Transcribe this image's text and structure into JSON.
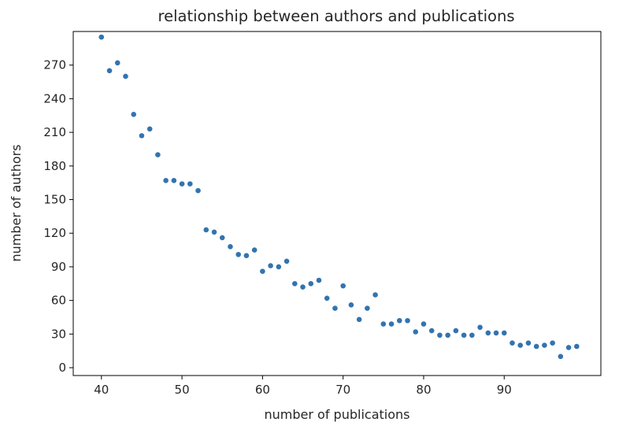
{
  "chart_data": {
    "type": "scatter",
    "title": "relationship between authors and publications",
    "xlabel": "number of publications",
    "ylabel": "number of authors",
    "xlim": [
      36.5,
      102
    ],
    "ylim": [
      -7,
      300
    ],
    "xticks": [
      40,
      50,
      60,
      70,
      80,
      90
    ],
    "yticks": [
      0,
      30,
      60,
      90,
      120,
      150,
      180,
      210,
      240,
      270
    ],
    "grid": false,
    "marker_color": "#3274b0",
    "points": [
      {
        "x": 40,
        "y": 295
      },
      {
        "x": 41,
        "y": 265
      },
      {
        "x": 42,
        "y": 272
      },
      {
        "x": 43,
        "y": 260
      },
      {
        "x": 44,
        "y": 226
      },
      {
        "x": 45,
        "y": 207
      },
      {
        "x": 46,
        "y": 213
      },
      {
        "x": 47,
        "y": 190
      },
      {
        "x": 48,
        "y": 167
      },
      {
        "x": 49,
        "y": 167
      },
      {
        "x": 50,
        "y": 164
      },
      {
        "x": 51,
        "y": 164
      },
      {
        "x": 52,
        "y": 158
      },
      {
        "x": 53,
        "y": 123
      },
      {
        "x": 54,
        "y": 121
      },
      {
        "x": 55,
        "y": 116
      },
      {
        "x": 56,
        "y": 108
      },
      {
        "x": 57,
        "y": 101
      },
      {
        "x": 58,
        "y": 100
      },
      {
        "x": 59,
        "y": 105
      },
      {
        "x": 60,
        "y": 86
      },
      {
        "x": 61,
        "y": 91
      },
      {
        "x": 62,
        "y": 90
      },
      {
        "x": 63,
        "y": 95
      },
      {
        "x": 64,
        "y": 75
      },
      {
        "x": 65,
        "y": 72
      },
      {
        "x": 66,
        "y": 75
      },
      {
        "x": 67,
        "y": 78
      },
      {
        "x": 68,
        "y": 62
      },
      {
        "x": 69,
        "y": 53
      },
      {
        "x": 70,
        "y": 73
      },
      {
        "x": 71,
        "y": 56
      },
      {
        "x": 72,
        "y": 43
      },
      {
        "x": 73,
        "y": 53
      },
      {
        "x": 74,
        "y": 65
      },
      {
        "x": 75,
        "y": 39
      },
      {
        "x": 76,
        "y": 39
      },
      {
        "x": 77,
        "y": 42
      },
      {
        "x": 78,
        "y": 42
      },
      {
        "x": 79,
        "y": 32
      },
      {
        "x": 80,
        "y": 39
      },
      {
        "x": 81,
        "y": 33
      },
      {
        "x": 82,
        "y": 29
      },
      {
        "x": 83,
        "y": 29
      },
      {
        "x": 84,
        "y": 33
      },
      {
        "x": 85,
        "y": 29
      },
      {
        "x": 86,
        "y": 29
      },
      {
        "x": 87,
        "y": 36
      },
      {
        "x": 88,
        "y": 31
      },
      {
        "x": 89,
        "y": 31
      },
      {
        "x": 90,
        "y": 31
      },
      {
        "x": 91,
        "y": 22
      },
      {
        "x": 92,
        "y": 20
      },
      {
        "x": 93,
        "y": 22
      },
      {
        "x": 94,
        "y": 19
      },
      {
        "x": 95,
        "y": 20
      },
      {
        "x": 96,
        "y": 22
      },
      {
        "x": 97,
        "y": 10
      },
      {
        "x": 98,
        "y": 18
      },
      {
        "x": 99,
        "y": 19
      }
    ]
  }
}
